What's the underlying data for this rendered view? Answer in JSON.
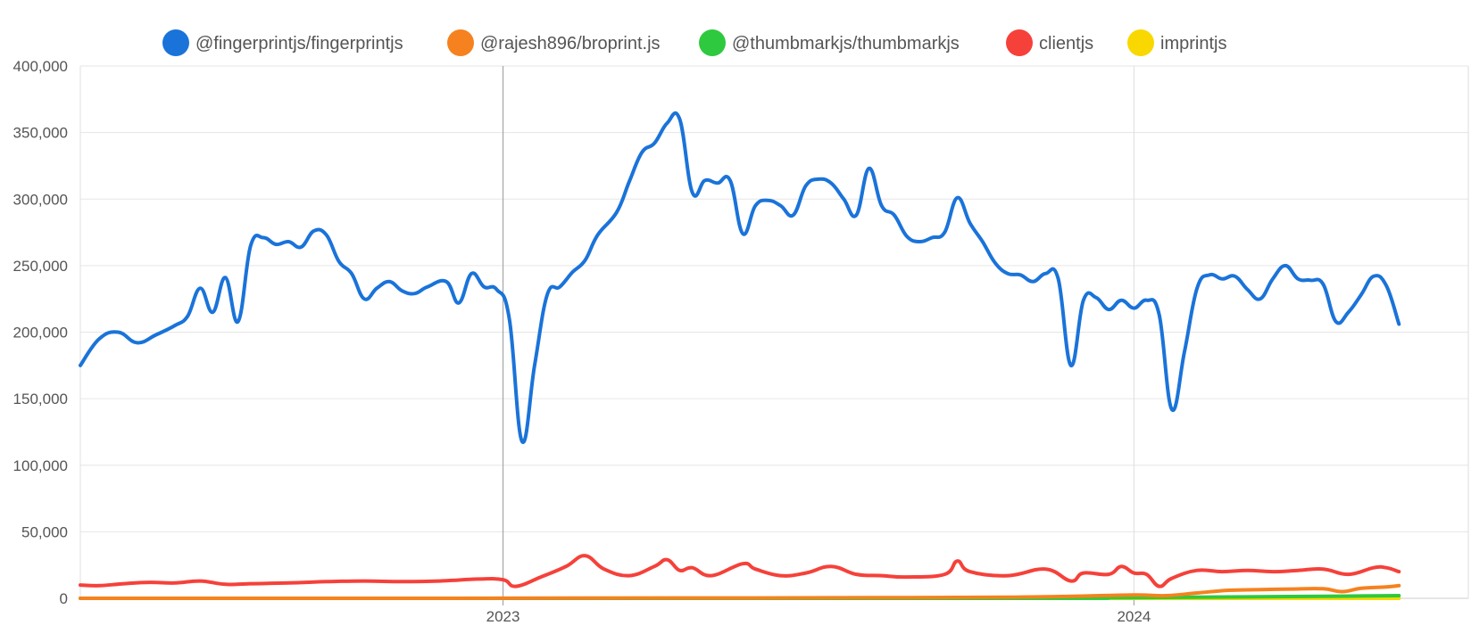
{
  "chart_data": {
    "type": "line",
    "title": "",
    "xlabel": "",
    "ylabel": "",
    "ylim": [
      0,
      400000
    ],
    "yticks": [
      "400,000",
      "350,000",
      "300,000",
      "250,000",
      "200,000",
      "150,000",
      "100,000",
      "50,000",
      "0"
    ],
    "ytick_values": [
      400000,
      350000,
      300000,
      250000,
      200000,
      150000,
      100000,
      50000,
      0
    ],
    "xticks": [
      {
        "label": "2023",
        "value": 2023.0
      },
      {
        "label": "2024",
        "value": 2024.0
      }
    ],
    "xlim": [
      2022.33,
      2024.53
    ],
    "grid": true,
    "legend_position": "top",
    "series": [
      {
        "name": "@fingerprintjs/fingerprintjs",
        "color": "#1a73d9",
        "points": [
          [
            2022.33,
            175000
          ],
          [
            2022.36,
            195000
          ],
          [
            2022.39,
            200000
          ],
          [
            2022.42,
            192000
          ],
          [
            2022.45,
            198000
          ],
          [
            2022.48,
            205000
          ],
          [
            2022.5,
            212000
          ],
          [
            2022.52,
            233000
          ],
          [
            2022.54,
            215000
          ],
          [
            2022.56,
            241000
          ],
          [
            2022.58,
            208000
          ],
          [
            2022.6,
            265000
          ],
          [
            2022.62,
            271000
          ],
          [
            2022.64,
            266000
          ],
          [
            2022.66,
            268000
          ],
          [
            2022.68,
            264000
          ],
          [
            2022.7,
            276000
          ],
          [
            2022.72,
            273000
          ],
          [
            2022.74,
            253000
          ],
          [
            2022.76,
            244000
          ],
          [
            2022.78,
            225000
          ],
          [
            2022.8,
            233000
          ],
          [
            2022.82,
            238000
          ],
          [
            2022.84,
            231000
          ],
          [
            2022.86,
            229000
          ],
          [
            2022.88,
            234000
          ],
          [
            2022.91,
            238000
          ],
          [
            2022.93,
            222000
          ],
          [
            2022.95,
            244000
          ],
          [
            2022.97,
            234000
          ],
          [
            2022.99,
            232000
          ],
          [
            2023.01,
            210000
          ],
          [
            2023.03,
            118000
          ],
          [
            2023.05,
            175000
          ],
          [
            2023.07,
            228000
          ],
          [
            2023.09,
            234000
          ],
          [
            2023.11,
            245000
          ],
          [
            2023.13,
            254000
          ],
          [
            2023.15,
            273000
          ],
          [
            2023.18,
            290000
          ],
          [
            2023.2,
            313000
          ],
          [
            2023.22,
            335000
          ],
          [
            2023.24,
            342000
          ],
          [
            2023.26,
            357000
          ],
          [
            2023.28,
            360000
          ],
          [
            2023.3,
            305000
          ],
          [
            2023.32,
            314000
          ],
          [
            2023.34,
            312000
          ],
          [
            2023.36,
            314000
          ],
          [
            2023.38,
            274000
          ],
          [
            2023.4,
            295000
          ],
          [
            2023.42,
            299000
          ],
          [
            2023.44,
            295000
          ],
          [
            2023.46,
            288000
          ],
          [
            2023.48,
            310000
          ],
          [
            2023.5,
            315000
          ],
          [
            2023.52,
            312000
          ],
          [
            2023.54,
            300000
          ],
          [
            2023.56,
            288000
          ],
          [
            2023.58,
            323000
          ],
          [
            2023.6,
            295000
          ],
          [
            2023.62,
            288000
          ],
          [
            2023.64,
            272000
          ],
          [
            2023.66,
            268000
          ],
          [
            2023.68,
            271000
          ],
          [
            2023.7,
            275000
          ],
          [
            2023.72,
            301000
          ],
          [
            2023.74,
            282000
          ],
          [
            2023.76,
            268000
          ],
          [
            2023.78,
            252000
          ],
          [
            2023.8,
            244000
          ],
          [
            2023.82,
            243000
          ],
          [
            2023.84,
            238000
          ],
          [
            2023.86,
            244000
          ],
          [
            2023.88,
            240000
          ],
          [
            2023.9,
            175000
          ],
          [
            2023.92,
            224000
          ],
          [
            2023.94,
            226000
          ],
          [
            2023.96,
            217000
          ],
          [
            2023.98,
            224000
          ],
          [
            2024.0,
            218000
          ],
          [
            2024.02,
            224000
          ],
          [
            2024.04,
            213000
          ],
          [
            2024.06,
            142000
          ],
          [
            2024.08,
            185000
          ],
          [
            2024.1,
            233000
          ],
          [
            2024.12,
            243000
          ],
          [
            2024.14,
            240000
          ],
          [
            2024.16,
            242000
          ],
          [
            2024.18,
            232000
          ],
          [
            2024.2,
            225000
          ],
          [
            2024.22,
            240000
          ],
          [
            2024.24,
            250000
          ],
          [
            2024.26,
            240000
          ],
          [
            2024.28,
            239000
          ],
          [
            2024.3,
            236000
          ],
          [
            2024.32,
            208000
          ],
          [
            2024.34,
            215000
          ],
          [
            2024.36,
            228000
          ],
          [
            2024.38,
            242000
          ],
          [
            2024.4,
            235000
          ],
          [
            2024.42,
            206000
          ]
        ]
      },
      {
        "name": "@rajesh896/broprint.js",
        "color": "#f5821f",
        "points": [
          [
            2022.33,
            0
          ],
          [
            2022.6,
            0
          ],
          [
            2022.9,
            0
          ],
          [
            2023.1,
            200
          ],
          [
            2023.4,
            300
          ],
          [
            2023.6,
            500
          ],
          [
            2023.8,
            800
          ],
          [
            2023.9,
            1500
          ],
          [
            2024.0,
            2500
          ],
          [
            2024.05,
            2000
          ],
          [
            2024.1,
            4000
          ],
          [
            2024.15,
            6000
          ],
          [
            2024.2,
            6500
          ],
          [
            2024.25,
            7000
          ],
          [
            2024.3,
            7200
          ],
          [
            2024.33,
            5000
          ],
          [
            2024.36,
            7500
          ],
          [
            2024.4,
            8500
          ],
          [
            2024.42,
            9500
          ]
        ]
      },
      {
        "name": "@thumbmarkjs/thumbmarkjs",
        "color": "#2ec93f",
        "points": [
          [
            2022.33,
            0
          ],
          [
            2023.8,
            0
          ],
          [
            2023.9,
            300
          ],
          [
            2024.0,
            500
          ],
          [
            2024.1,
            800
          ],
          [
            2024.2,
            1200
          ],
          [
            2024.3,
            1500
          ],
          [
            2024.42,
            2000
          ]
        ]
      },
      {
        "name": "clientjs",
        "color": "#f5413a",
        "points": [
          [
            2022.33,
            10000
          ],
          [
            2022.36,
            9500
          ],
          [
            2022.4,
            11000
          ],
          [
            2022.44,
            12000
          ],
          [
            2022.48,
            11500
          ],
          [
            2022.52,
            13000
          ],
          [
            2022.56,
            10500
          ],
          [
            2022.6,
            11000
          ],
          [
            2022.66,
            11500
          ],
          [
            2022.72,
            12500
          ],
          [
            2022.78,
            13000
          ],
          [
            2022.84,
            12500
          ],
          [
            2022.9,
            13000
          ],
          [
            2022.96,
            14500
          ],
          [
            2023.0,
            14000
          ],
          [
            2023.02,
            9000
          ],
          [
            2023.06,
            16000
          ],
          [
            2023.1,
            24000
          ],
          [
            2023.13,
            32000
          ],
          [
            2023.16,
            22000
          ],
          [
            2023.2,
            17000
          ],
          [
            2023.24,
            24000
          ],
          [
            2023.26,
            29000
          ],
          [
            2023.28,
            21000
          ],
          [
            2023.3,
            23000
          ],
          [
            2023.33,
            17000
          ],
          [
            2023.38,
            26000
          ],
          [
            2023.4,
            22000
          ],
          [
            2023.44,
            17000
          ],
          [
            2023.48,
            19000
          ],
          [
            2023.52,
            24000
          ],
          [
            2023.56,
            18000
          ],
          [
            2023.6,
            17000
          ],
          [
            2023.64,
            16000
          ],
          [
            2023.7,
            18000
          ],
          [
            2023.72,
            28000
          ],
          [
            2023.74,
            20000
          ],
          [
            2023.8,
            17000
          ],
          [
            2023.86,
            22000
          ],
          [
            2023.9,
            13000
          ],
          [
            2023.92,
            19000
          ],
          [
            2023.96,
            18000
          ],
          [
            2023.98,
            24000
          ],
          [
            2024.0,
            19000
          ],
          [
            2024.02,
            18000
          ],
          [
            2024.04,
            9000
          ],
          [
            2024.06,
            15000
          ],
          [
            2024.1,
            21000
          ],
          [
            2024.14,
            20000
          ],
          [
            2024.18,
            21000
          ],
          [
            2024.22,
            20000
          ],
          [
            2024.26,
            21000
          ],
          [
            2024.3,
            22000
          ],
          [
            2024.34,
            18000
          ],
          [
            2024.38,
            23000
          ],
          [
            2024.4,
            23000
          ],
          [
            2024.42,
            20000
          ]
        ]
      },
      {
        "name": "imprintjs",
        "color": "#f8d800",
        "points": [
          [
            2022.33,
            0
          ],
          [
            2023.0,
            0
          ],
          [
            2023.6,
            0
          ],
          [
            2024.0,
            0
          ],
          [
            2024.42,
            0
          ]
        ]
      }
    ]
  }
}
